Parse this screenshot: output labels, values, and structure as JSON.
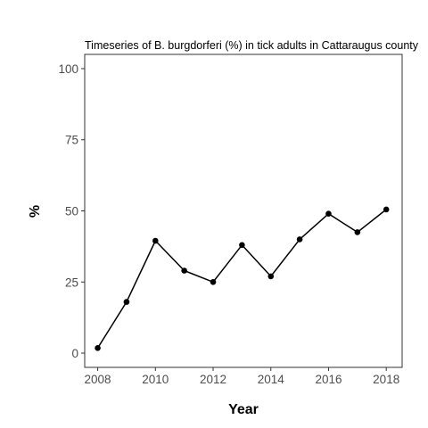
{
  "chart_data": {
    "type": "line",
    "title": "Timeseries of B. burgdorferi (%) in tick adults in Cattaraugus county",
    "xlabel": "Year",
    "ylabel": "%",
    "x": [
      2008,
      2009,
      2010,
      2011,
      2012,
      2013,
      2014,
      2015,
      2016,
      2017,
      2018
    ],
    "series": [
      {
        "values": [
          1.8,
          18,
          39.5,
          29,
          25,
          38,
          27,
          40,
          49,
          42.5,
          50.5
        ]
      }
    ],
    "xlim": [
      2007.55,
      2018.55
    ],
    "ylim": [
      -5,
      105
    ],
    "x_ticks": [
      2008,
      2010,
      2012,
      2014,
      2016,
      2018
    ],
    "x_tick_labels": [
      "2008",
      "2010",
      "2012",
      "2014",
      "2016",
      "2018"
    ],
    "y_ticks": [
      0,
      25,
      50,
      75,
      100
    ],
    "y_tick_labels": [
      "0",
      "25",
      "50",
      "75",
      "100"
    ],
    "grid": false,
    "legend": "none",
    "colors": {
      "line": "#000000",
      "point": "#000000",
      "panel_border": "#333333",
      "tick_label": "#4d4d4d",
      "background": "#ffffff"
    }
  }
}
